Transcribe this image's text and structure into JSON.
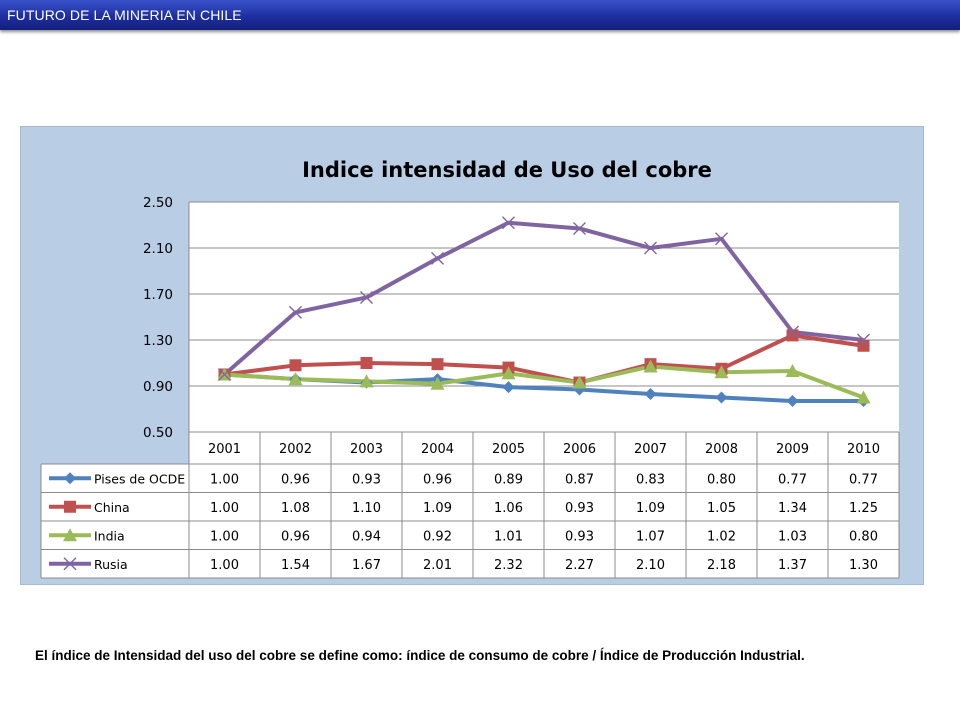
{
  "header": {
    "title": "FUTURO DE LA MINERIA EN CHILE"
  },
  "chart_data": {
    "type": "line",
    "title": "Indice intensidad de Uso del cobre",
    "xlabel": "",
    "ylabel": "",
    "categories": [
      "2001",
      "2002",
      "2003",
      "2004",
      "2005",
      "2006",
      "2007",
      "2008",
      "2009",
      "2010"
    ],
    "y_ticks": [
      "2.50",
      "2.10",
      "1.70",
      "1.30",
      "0.90",
      "0.50"
    ],
    "ylim": [
      0.5,
      2.5
    ],
    "grid": true,
    "legend": "data-table-below",
    "series": [
      {
        "name": "Pises de OCDE",
        "color": "#4f81bd",
        "marker": "diamond",
        "values": [
          1.0,
          0.96,
          0.93,
          0.96,
          0.89,
          0.87,
          0.83,
          0.8,
          0.77,
          0.77
        ],
        "labels": [
          "1.00",
          "0.96",
          "0.93",
          "0.96",
          "0.89",
          "0.87",
          "0.83",
          "0.80",
          "0.77",
          "0.77"
        ]
      },
      {
        "name": "China",
        "color": "#c0504d",
        "marker": "square",
        "values": [
          1.0,
          1.08,
          1.1,
          1.09,
          1.06,
          0.93,
          1.09,
          1.05,
          1.34,
          1.25
        ],
        "labels": [
          "1.00",
          "1.08",
          "1.10",
          "1.09",
          "1.06",
          "0.93",
          "1.09",
          "1.05",
          "1.34",
          "1.25"
        ]
      },
      {
        "name": "India",
        "color": "#9bbb59",
        "marker": "triangle",
        "values": [
          1.0,
          0.96,
          0.94,
          0.92,
          1.01,
          0.93,
          1.07,
          1.02,
          1.03,
          0.8
        ],
        "labels": [
          "1.00",
          "0.96",
          "0.94",
          "0.92",
          "1.01",
          "0.93",
          "1.07",
          "1.02",
          "1.03",
          "0.80"
        ]
      },
      {
        "name": "Rusia",
        "color": "#8064a2",
        "marker": "x",
        "values": [
          1.0,
          1.54,
          1.67,
          2.01,
          2.32,
          2.27,
          2.1,
          2.18,
          1.37,
          1.3
        ],
        "labels": [
          "1.00",
          "1.54",
          "1.67",
          "2.01",
          "2.32",
          "2.27",
          "2.10",
          "2.18",
          "1.37",
          "1.30"
        ]
      }
    ]
  },
  "footnote": {
    "text": "El índice de Intensidad del uso del cobre se define como: índice de consumo de cobre / Índice de Producción Industrial."
  }
}
